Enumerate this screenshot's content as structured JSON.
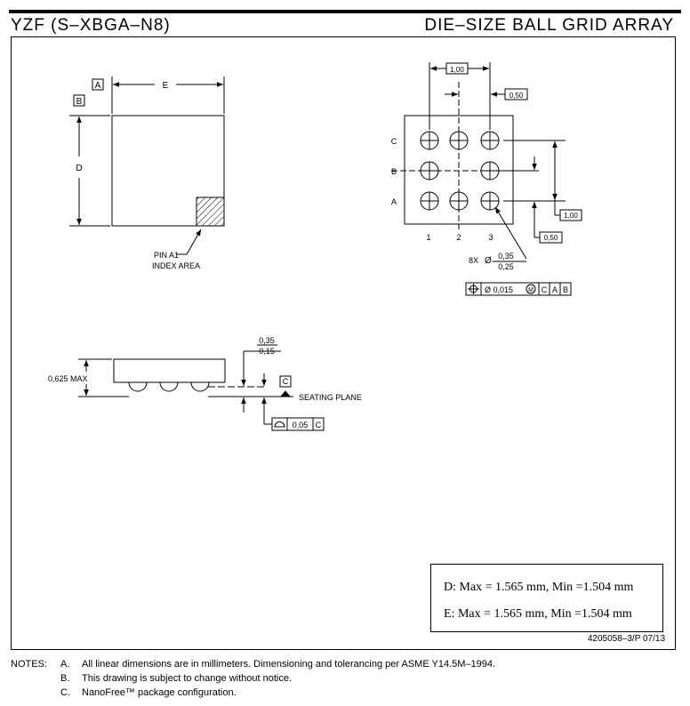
{
  "header": {
    "title_left": "YZF (S–XBGA–N8)",
    "title_right": "DIE–SIZE BALL GRID ARRAY"
  },
  "top_view": {
    "datum_a": "A",
    "datum_b": "B",
    "dim_e": "E",
    "dim_d": "D",
    "pin_label_1": "PIN A1",
    "pin_label_2": "INDEX AREA"
  },
  "bottom_view": {
    "row_labels": [
      "C",
      "B",
      "A"
    ],
    "col_labels": [
      "1",
      "2",
      "3"
    ],
    "pitch_h": "1,00",
    "offset_h": "0,50",
    "pitch_v": "1,00",
    "offset_v": "0,50",
    "ball_count": "8X",
    "diameter_symbol": "Ø",
    "ball_dia_max": "0,35",
    "ball_dia_min": "0,25",
    "fcf_tolerance": "Ø 0,015",
    "fcf_modifier": "M",
    "fcf_datum_1": "C",
    "fcf_datum_2": "A",
    "fcf_datum_3": "B"
  },
  "side_view": {
    "max_height": "0,625 MAX",
    "standoff_max": "0,35",
    "standoff_min": "0,15",
    "datum_c": "C",
    "seating_plane": "SEATING PLANE",
    "flatness_value": "0,05",
    "flatness_datum": "C"
  },
  "dimensions": {
    "d_line": "D: Max = 1.565 mm, Min =1.504 mm",
    "e_line": "E: Max = 1.565 mm, Min =1.504 mm"
  },
  "drawing_number": "4205058–3/P   07/13",
  "notes": {
    "label": "NOTES:",
    "items": [
      {
        "letter": "A.",
        "text": "All linear dimensions are in millimeters. Dimensioning and tolerancing per ASME Y14.5M–1994."
      },
      {
        "letter": "B.",
        "text": "This drawing is subject to change without notice."
      },
      {
        "letter": "C.",
        "text": "NanoFree™ package configuration."
      }
    ]
  }
}
